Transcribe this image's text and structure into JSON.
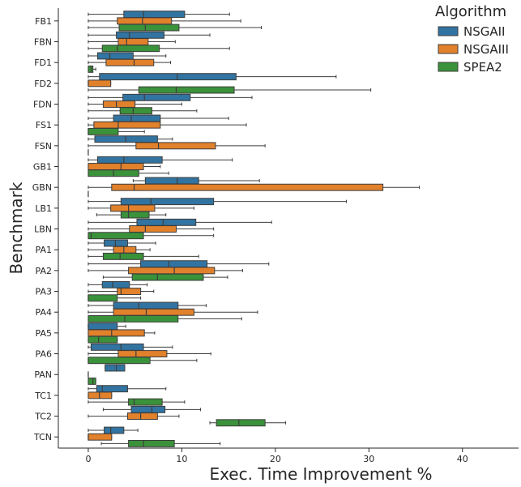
{
  "chart_data": {
    "type": "boxplot",
    "orientation": "horizontal",
    "xlabel": "Exec. Time Improvement %",
    "ylabel": "Benchmark",
    "xlim": [
      -3.2,
      46
    ],
    "xticks": [
      0,
      10,
      20,
      30,
      40
    ],
    "grid": false,
    "legend": {
      "title": "Algorithm",
      "placement": "top-right"
    },
    "categories": [
      "FB1",
      "FBN",
      "FD1",
      "FD2",
      "FDN",
      "FS1",
      "FSN",
      "GB1",
      "GBN",
      "LB1",
      "LBN",
      "PA1",
      "PA2",
      "PA3",
      "PA4",
      "PA5",
      "PA6",
      "PAN",
      "TC1",
      "TC2",
      "TCN"
    ],
    "series": [
      {
        "name": "NSGAII",
        "color": "#3274a1",
        "boxes": [
          [
            0,
            3.8,
            5.9,
            10.3,
            15.1
          ],
          [
            0,
            3.0,
            4.4,
            8.1,
            13.0
          ],
          [
            0,
            1.0,
            2.3,
            4.8,
            8.3
          ],
          [
            0,
            1.2,
            9.5,
            15.8,
            26.5
          ],
          [
            0,
            3.7,
            6.0,
            10.9,
            17.5
          ],
          [
            0,
            2.7,
            4.6,
            7.7,
            15.0
          ],
          [
            0,
            0.7,
            4.0,
            7.4,
            9.0
          ],
          [
            0,
            1.0,
            3.8,
            7.9,
            15.4
          ],
          [
            4.8,
            6.1,
            9.5,
            11.8,
            18.3
          ],
          [
            0,
            3.5,
            6.7,
            13.4,
            27.6
          ],
          [
            0,
            5.2,
            8.0,
            11.5,
            19.6
          ],
          [
            0,
            1.7,
            2.9,
            4.2,
            7.2
          ],
          [
            0,
            5.6,
            8.6,
            12.7,
            19.3
          ],
          [
            0,
            1.5,
            2.6,
            4.4,
            6.3
          ],
          [
            0,
            2.7,
            5.4,
            9.6,
            12.6
          ],
          [
            0,
            0,
            0,
            3.1,
            4.0
          ],
          [
            0,
            0.3,
            3.5,
            5.9,
            9.0
          ],
          [
            1.8,
            1.8,
            3.0,
            3.9,
            3.9
          ],
          [
            0,
            0.9,
            1.5,
            4.2,
            8.3
          ],
          [
            1.6,
            4.6,
            6.8,
            8.2,
            12.0
          ],
          [
            0,
            1.7,
            2.4,
            3.8,
            5.3
          ]
        ]
      },
      {
        "name": "NSGAIII",
        "color": "#e1812c",
        "boxes": [
          [
            0,
            3.1,
            5.8,
            8.9,
            16.3
          ],
          [
            0,
            3.2,
            4.1,
            6.4,
            9.3
          ],
          [
            0,
            1.9,
            4.9,
            7.0,
            8.8
          ],
          [
            0,
            0,
            0,
            2.4,
            2.4
          ],
          [
            0,
            1.6,
            3.0,
            5.0,
            10.0
          ],
          [
            0,
            0.6,
            3.2,
            7.7,
            16.9
          ],
          [
            0,
            5.1,
            7.5,
            13.6,
            18.9
          ],
          [
            0,
            0,
            3.5,
            5.9,
            7.7
          ],
          [
            0,
            2.5,
            4.9,
            31.5,
            35.4
          ],
          [
            0,
            2.4,
            4.3,
            7.1,
            11.3
          ],
          [
            0,
            4.4,
            6.1,
            9.4,
            13.4
          ],
          [
            0,
            2.7,
            3.8,
            5.1,
            6.6
          ],
          [
            0,
            4.3,
            9.2,
            13.5,
            16.5
          ],
          [
            0,
            3.1,
            3.5,
            5.6,
            7.0
          ],
          [
            0,
            2.7,
            6.2,
            11.3,
            18.1
          ],
          [
            0,
            0,
            2.5,
            6.0,
            7.1
          ],
          [
            0,
            3.2,
            5.1,
            8.4,
            13.1
          ],
          [
            0,
            0,
            0,
            0,
            0
          ],
          [
            0,
            0,
            1.2,
            2.5,
            2.5
          ],
          [
            0,
            4.2,
            5.6,
            7.4,
            9.7
          ],
          [
            0,
            0,
            0,
            2.5,
            2.5
          ]
        ]
      },
      {
        "name": "SPEA2",
        "color": "#3a923a",
        "boxes": [
          [
            0,
            3.3,
            6.1,
            9.7,
            18.5
          ],
          [
            0,
            1.5,
            3.1,
            7.6,
            15.1
          ],
          [
            0,
            0,
            0.3,
            0.5,
            0.8
          ],
          [
            0,
            5.4,
            9.4,
            15.6,
            30.2
          ],
          [
            0,
            3.4,
            4.8,
            6.8,
            11.6
          ],
          [
            0,
            0,
            0,
            3.2,
            6.0
          ],
          [
            0,
            0,
            0,
            0,
            0
          ],
          [
            0,
            0,
            2.7,
            5.4,
            8.6
          ],
          [
            0,
            0,
            0,
            0,
            0
          ],
          [
            0.9,
            3.5,
            4.3,
            6.5,
            8.3
          ],
          [
            0,
            0,
            0.3,
            5.9,
            13.4
          ],
          [
            0,
            1.6,
            3.4,
            5.9,
            11.8
          ],
          [
            1.6,
            4.7,
            7.4,
            12.3,
            14.9
          ],
          [
            0,
            0,
            0,
            3.1,
            5.6
          ],
          [
            0,
            0,
            3.9,
            9.6,
            16.4
          ],
          [
            0,
            0,
            1.1,
            3.1,
            3.1
          ],
          [
            0,
            0,
            0,
            6.6,
            11.6
          ],
          [
            0,
            0,
            0.5,
            0.8,
            0.8
          ],
          [
            0,
            4.3,
            4.9,
            7.9,
            10.3
          ],
          [
            13.0,
            13.7,
            16.1,
            18.9,
            21.1
          ],
          [
            1.4,
            4.3,
            5.9,
            9.2,
            14.1
          ]
        ]
      }
    ]
  }
}
